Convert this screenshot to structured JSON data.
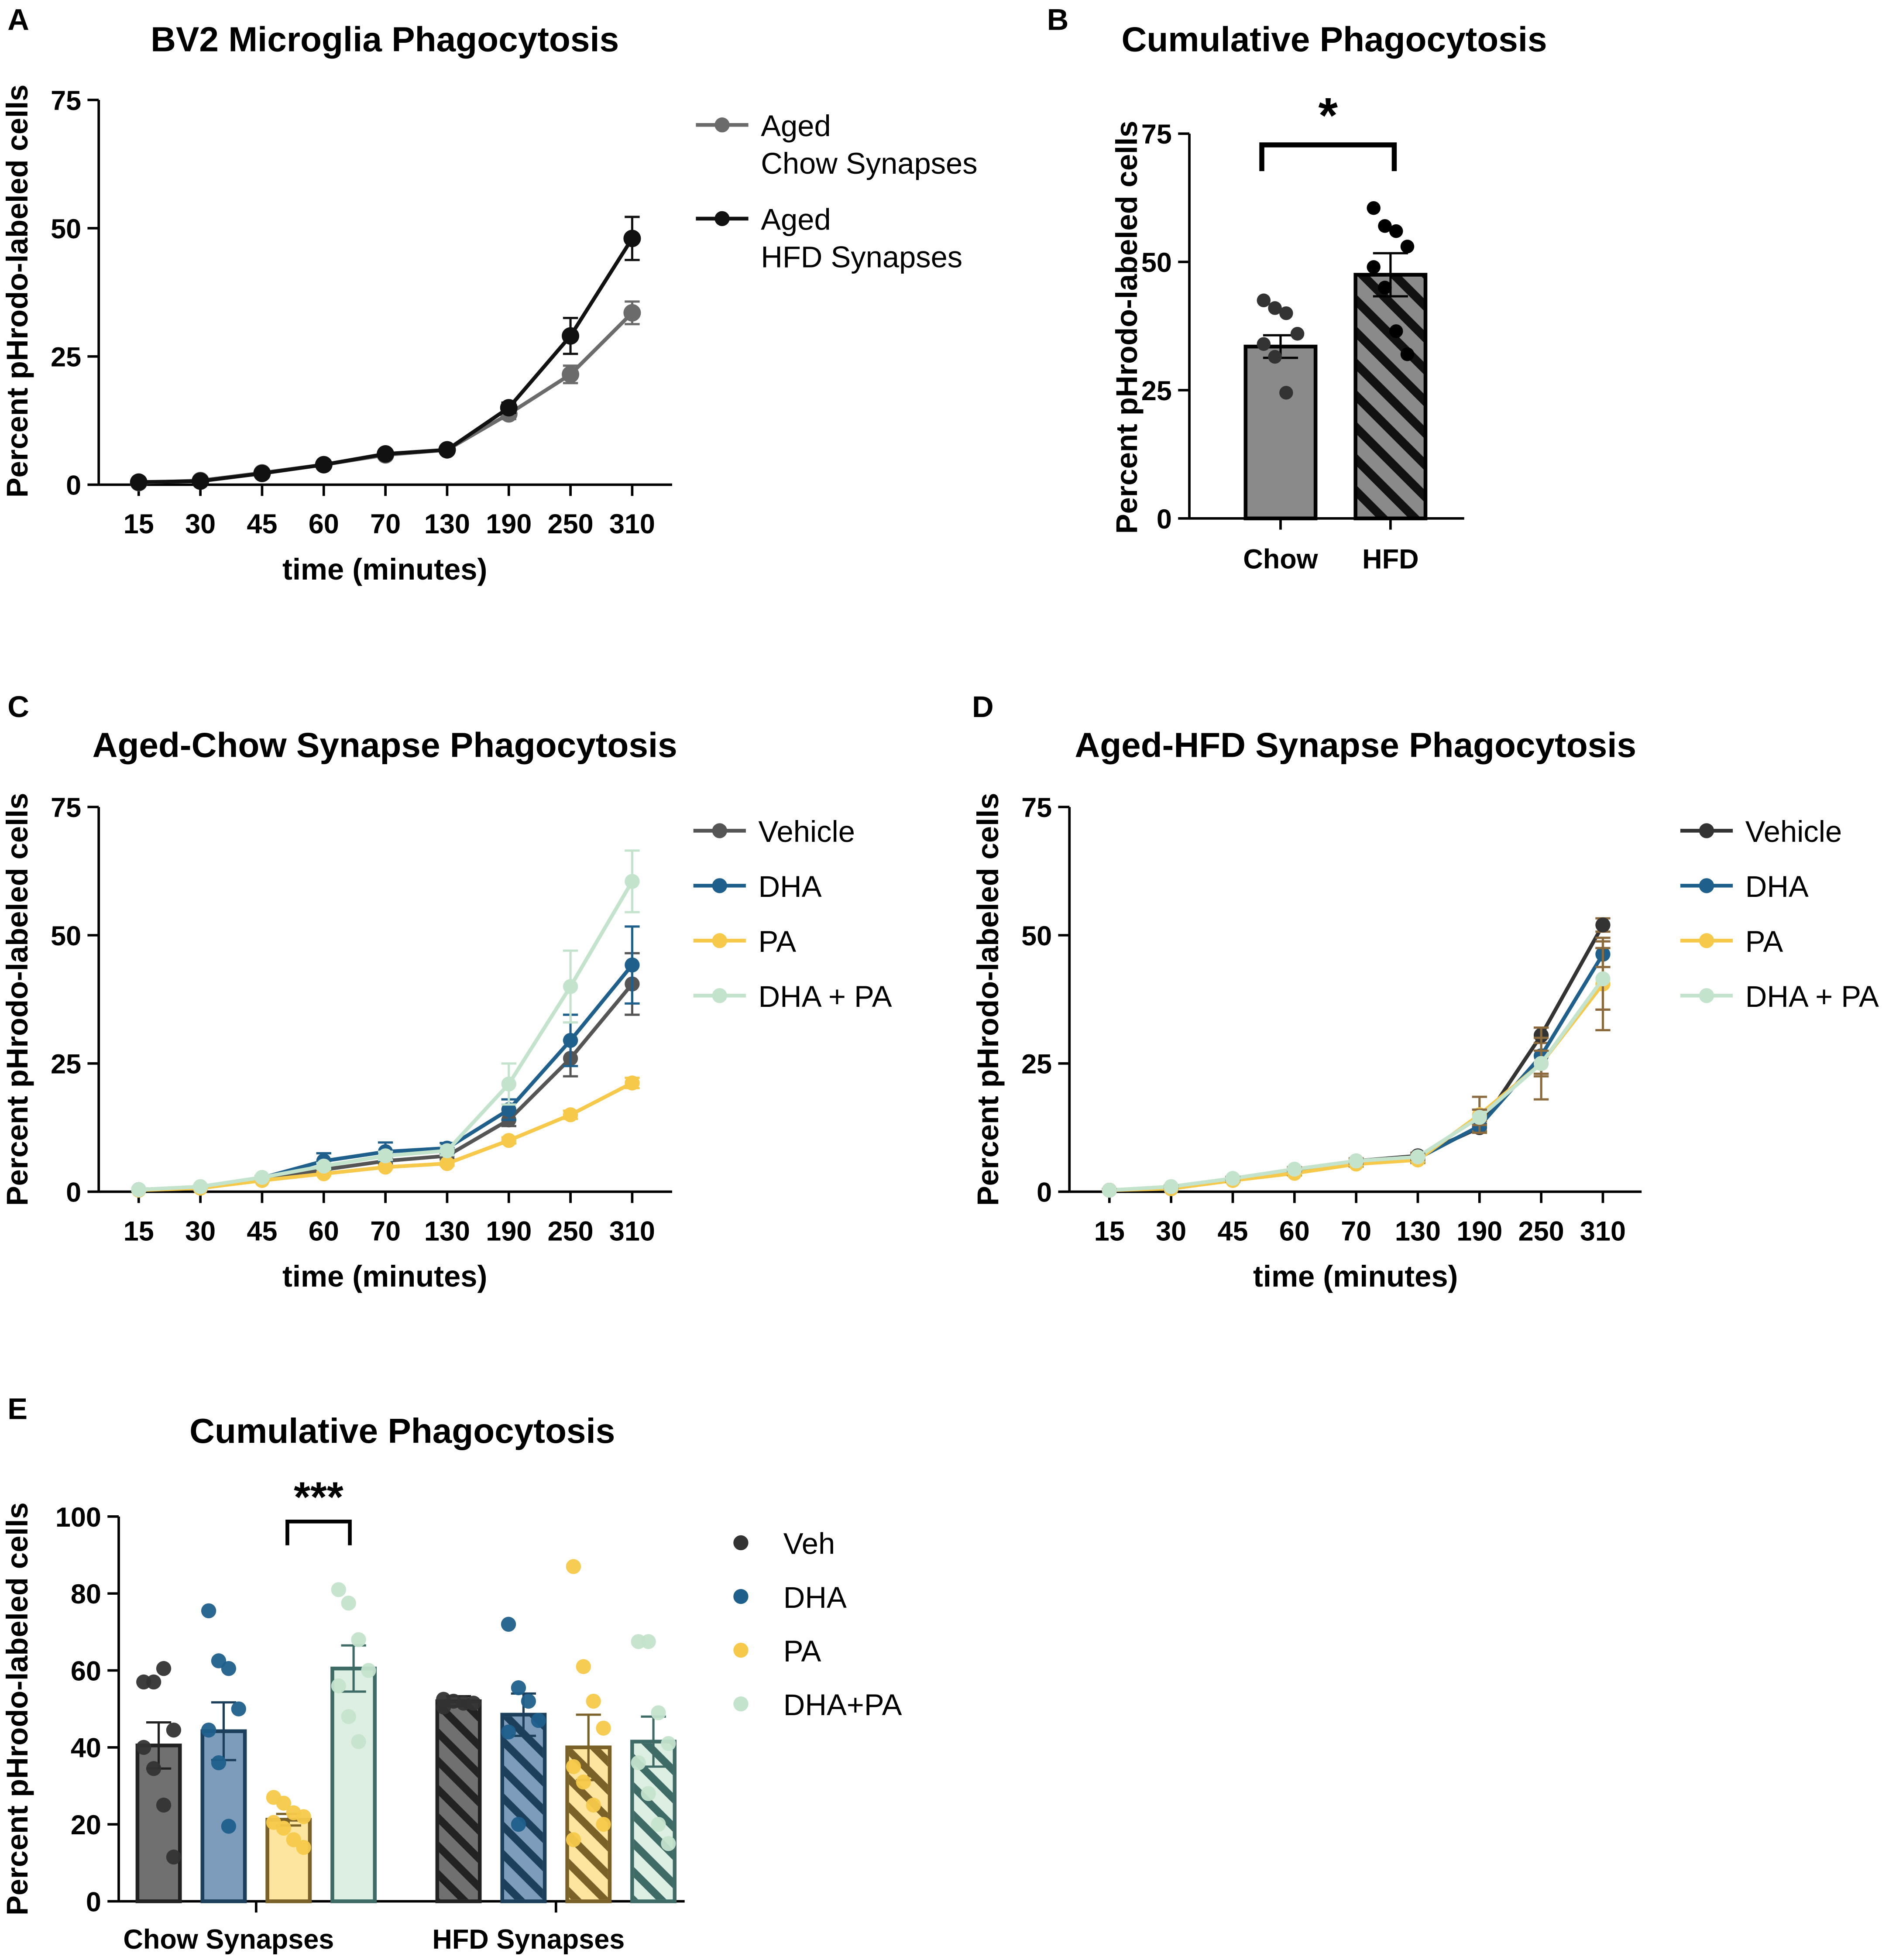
{
  "colors": {
    "axis": "#000000",
    "aged_chow": "#6b6b6b",
    "aged_hfd": "#111111",
    "vehicle": "#555555",
    "vehicle_dark": "#333333",
    "dha": "#1f5f8b",
    "pa": "#f6c94a",
    "dha_pa": "#c4e3cc",
    "bar_fill_B": "#8a8a8a",
    "veh_bar": "#707070",
    "dha_bar": "#7d9cbb",
    "pa_bar": "#fde5a0",
    "dhapa_bar": "#dcefe2",
    "veh_edge": "#222222",
    "dha_edge": "#1c3f5c",
    "pa_edge": "#7a6128",
    "dhapa_edge": "#3f6b66",
    "err_D": "#8b6b3d"
  },
  "chart_data": [
    {
      "panel": "A",
      "type": "line",
      "title": "BV2 Microglia Phagocytosis",
      "xlabel": "time (minutes)",
      "ylabel": "Percent pHrodo-labeled cells",
      "categories": [
        "15",
        "30",
        "45",
        "60",
        "70",
        "130",
        "190",
        "250",
        "310"
      ],
      "yticks": [
        "0",
        "25",
        "50",
        "75"
      ],
      "ylim": [
        0,
        75
      ],
      "legend_position": "right",
      "series": [
        {
          "name": "Aged Chow Synapses",
          "legend_lines": [
            "Aged",
            "Chow Synapses"
          ],
          "color_key": "aged_chow",
          "values": [
            0.4,
            0.8,
            2.3,
            3.9,
            5.8,
            6.8,
            13.8,
            21.5,
            33.5
          ],
          "errors": [
            0.2,
            0.2,
            0.3,
            0.4,
            0.5,
            0.6,
            1.0,
            1.7,
            2.2
          ]
        },
        {
          "name": "Aged HFD Synapses",
          "legend_lines": [
            "Aged",
            "HFD Synapses"
          ],
          "color_key": "aged_hfd",
          "values": [
            0.5,
            0.7,
            2.2,
            3.9,
            6.0,
            6.8,
            15.0,
            29.0,
            48.0
          ],
          "errors": [
            0.2,
            0.2,
            0.3,
            0.4,
            0.5,
            0.6,
            1.0,
            3.5,
            4.2
          ]
        }
      ]
    },
    {
      "panel": "B",
      "type": "bar",
      "title": "Cumulative Phagocytosis",
      "xlabel": "",
      "ylabel": "Percent pHrodo-labeled cells",
      "categories": [
        "Chow",
        "HFD"
      ],
      "yticks": [
        "0",
        "25",
        "50",
        "75"
      ],
      "ylim": [
        0,
        75
      ],
      "values": [
        33.5,
        47.5
      ],
      "errors": [
        2.2,
        4.2
      ],
      "points": [
        [
          42.5,
          41.0,
          40.0,
          36.0,
          34.0,
          31.5,
          24.5
        ],
        [
          60.5,
          57.0,
          56.0,
          53.0,
          49.0,
          45.0,
          36.5,
          32.0
        ]
      ],
      "hatched": [
        false,
        true
      ],
      "annotations": [
        {
          "text": "*",
          "between": [
            "Chow",
            "HFD"
          ]
        }
      ]
    },
    {
      "panel": "C",
      "type": "line",
      "title": "Aged-Chow Synapse Phagocytosis",
      "xlabel": "time (minutes)",
      "ylabel": "Percent pHrodo-labeled cells",
      "categories": [
        "15",
        "30",
        "45",
        "60",
        "70",
        "130",
        "190",
        "250",
        "310"
      ],
      "yticks": [
        "0",
        "25",
        "50",
        "75"
      ],
      "ylim": [
        0,
        75
      ],
      "legend_position": "right",
      "series": [
        {
          "name": "Vehicle",
          "color_key": "vehicle",
          "values": [
            0.4,
            0.9,
            2.3,
            4.3,
            6.0,
            7.0,
            14.0,
            26.0,
            40.5
          ],
          "errors": [
            0.2,
            0.2,
            0.3,
            0.5,
            0.6,
            0.7,
            1.2,
            3.5,
            6.0
          ]
        },
        {
          "name": "DHA",
          "color_key": "dha",
          "values": [
            0.4,
            0.9,
            2.7,
            6.0,
            7.8,
            8.5,
            16.0,
            29.5,
            44.2
          ],
          "errors": [
            0.2,
            0.2,
            0.4,
            1.5,
            1.8,
            1.0,
            2.0,
            5.0,
            7.5
          ]
        },
        {
          "name": "PA",
          "color_key": "pa",
          "values": [
            0.3,
            0.7,
            2.2,
            3.5,
            4.8,
            5.5,
            10.0,
            15.0,
            21.2
          ],
          "errors": [
            0.1,
            0.1,
            0.2,
            0.3,
            0.3,
            0.4,
            0.6,
            0.8,
            1.0
          ]
        },
        {
          "name": "DHA + PA",
          "color_key": "dha_pa",
          "values": [
            0.4,
            1.0,
            2.8,
            5.0,
            7.0,
            8.0,
            21.0,
            40.0,
            60.5
          ],
          "errors": [
            0.2,
            0.2,
            0.3,
            0.6,
            0.8,
            0.9,
            4.0,
            7.0,
            6.0
          ]
        }
      ]
    },
    {
      "panel": "D",
      "type": "line",
      "title": "Aged-HFD Synapse Phagocytosis",
      "xlabel": "time (minutes)",
      "ylabel": "Percent pHrodo-labeled cells",
      "categories": [
        "15",
        "30",
        "45",
        "60",
        "70",
        "130",
        "190",
        "250",
        "310"
      ],
      "yticks": [
        "0",
        "25",
        "50",
        "75"
      ],
      "ylim": [
        0,
        75
      ],
      "legend_position": "right",
      "series": [
        {
          "name": "Vehicle",
          "color_key": "vehicle_dark",
          "values": [
            0.3,
            0.6,
            2.5,
            4.2,
            6.0,
            7.0,
            12.5,
            30.5,
            52.0
          ],
          "errors": [
            0.2,
            0.2,
            0.3,
            0.4,
            0.5,
            0.6,
            0.8,
            1.5,
            1.3
          ]
        },
        {
          "name": "DHA",
          "color_key": "dha",
          "values": [
            0.3,
            0.9,
            2.4,
            4.0,
            5.8,
            6.5,
            12.8,
            26.5,
            46.3
          ],
          "errors": [
            0.2,
            0.2,
            0.3,
            0.4,
            0.5,
            0.6,
            1.0,
            3.5,
            2.5
          ]
        },
        {
          "name": "PA",
          "color_key": "pa",
          "values": [
            0.3,
            0.6,
            2.2,
            3.6,
            5.4,
            6.2,
            15.0,
            25.0,
            40.5
          ],
          "errors": [
            0.2,
            0.2,
            0.3,
            0.4,
            0.5,
            0.6,
            3.5,
            7.0,
            9.0
          ]
        },
        {
          "name": "DHA + PA",
          "color_key": "dha_pa",
          "values": [
            0.3,
            1.0,
            2.6,
            4.4,
            6.0,
            6.8,
            14.5,
            25.0,
            41.5
          ],
          "errors": [
            0.2,
            0.2,
            0.3,
            0.4,
            0.5,
            0.6,
            1.5,
            2.5,
            6.0
          ]
        }
      ]
    },
    {
      "panel": "E",
      "type": "bar",
      "title": "Cumulative Phagocytosis",
      "xlabel": "",
      "ylabel": "Percent pHrodo-labeled cells",
      "categories": [
        "Chow Synapses",
        "HFD Synapses"
      ],
      "yticks": [
        "0",
        "20",
        "40",
        "60",
        "80",
        "100"
      ],
      "ylim": [
        0,
        100
      ],
      "legend_position": "right",
      "series": [
        {
          "name": "Veh",
          "color_key": "veh_bar",
          "edge_key": "veh_edge",
          "dot_key": "vehicle_dark",
          "values": [
            40.5,
            52.0
          ],
          "errors": [
            6.0,
            1.3
          ],
          "points": [
            [
              57.0,
              57.0,
              60.5,
              44.5,
              40.0,
              34.5,
              25.0,
              11.5
            ],
            [
              52.5,
              52.0,
              51.5,
              51.5,
              50.5
            ]
          ]
        },
        {
          "name": "DHA",
          "color_key": "dha_bar",
          "edge_key": "dha_edge",
          "dot_key": "dha",
          "values": [
            44.2,
            48.5
          ],
          "errors": [
            7.5,
            5.5
          ],
          "points": [
            [
              75.5,
              62.5,
              60.5,
              50.0,
              44.5,
              36.0,
              19.5
            ],
            [
              72.0,
              55.5,
              52.0,
              47.0,
              44.0,
              20.0
            ]
          ]
        },
        {
          "name": "PA",
          "color_key": "pa_bar",
          "edge_key": "pa_edge",
          "dot_key": "pa",
          "values": [
            21.2,
            40.0
          ],
          "errors": [
            1.5,
            8.5
          ],
          "points": [
            [
              27.0,
              25.5,
              23.0,
              22.0,
              20.5,
              19.0,
              16.0,
              14.0
            ],
            [
              87.0,
              61.0,
              52.0,
              45.0,
              35.0,
              31.0,
              25.0,
              20.0,
              16.0
            ]
          ]
        },
        {
          "name": "DHA+PA",
          "color_key": "dhapa_bar",
          "edge_key": "dhapa_edge",
          "dot_key": "dha_pa",
          "values": [
            60.5,
            41.5
          ],
          "errors": [
            6.0,
            6.5
          ],
          "points": [
            [
              81.0,
              77.5,
              68.0,
              60.0,
              56.0,
              48.0,
              41.5
            ],
            [
              67.5,
              67.5,
              49.0,
              41.0,
              36.0,
              28.0,
              20.0,
              15.0
            ]
          ]
        }
      ],
      "hatched_groups": [
        "HFD Synapses"
      ],
      "annotations": [
        {
          "text": "***",
          "group": "Chow Synapses",
          "between": [
            "PA",
            "DHA+PA"
          ]
        }
      ]
    }
  ]
}
